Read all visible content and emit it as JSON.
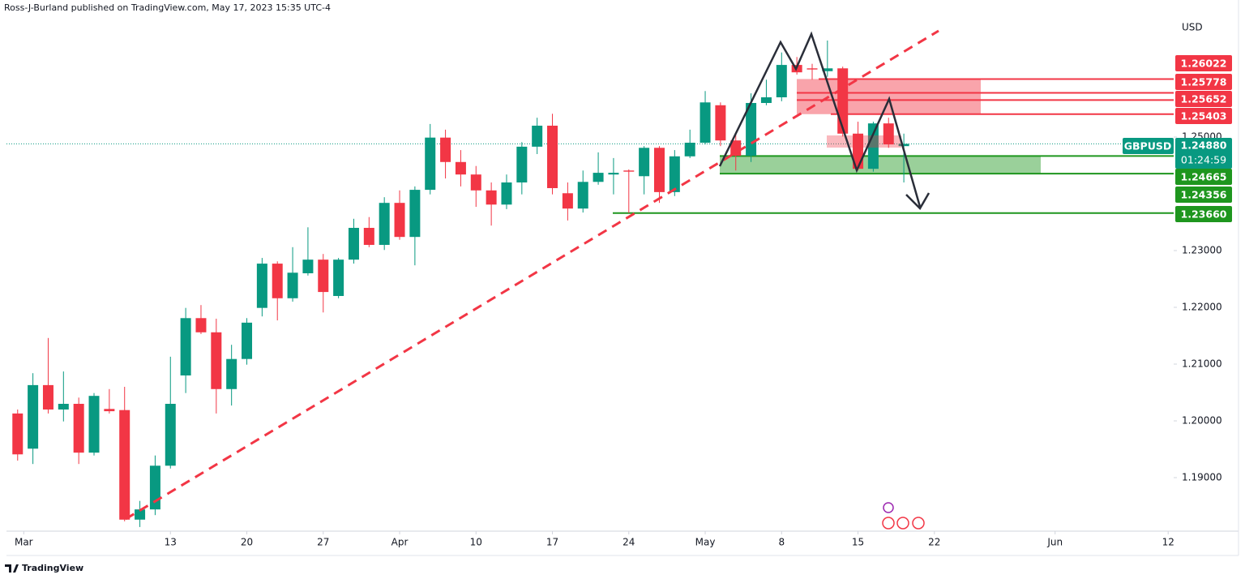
{
  "chart_data": {
    "type": "candlestick",
    "source": "Ross-J-Burland published on TradingView.com, May 17, 2023 15:35 UTC-4",
    "currency": "USD",
    "symbol": "GBPUSD",
    "countdown": "01:24:59",
    "brand": "TradingView",
    "up_color": "#089981",
    "down_color": "#f23645",
    "open": [
      1.2013,
      1.1951,
      1.2063,
      1.202,
      1.203,
      1.1944,
      1.2021,
      1.2019,
      1.1826,
      1.1844,
      1.1921,
      1.208,
      1.2181,
      1.2156,
      1.2056,
      1.2109,
      1.2199,
      1.2277,
      1.2216,
      1.226,
      1.2284,
      1.222,
      1.2284,
      1.234,
      1.231,
      1.2384,
      1.2324,
      1.2407,
      1.2499,
      1.2456,
      1.2434,
      1.2406,
      1.2381,
      1.242,
      1.2483,
      1.252,
      1.2401,
      1.2374,
      1.2421,
      1.2434,
      1.2441,
      1.2431,
      1.2481,
      1.2403,
      1.2466,
      1.249,
      1.2556,
      1.2494,
      1.2467,
      1.256,
      1.257,
      1.2627,
      1.2621,
      1.2616,
      1.2621,
      1.2506,
      1.2444,
      1.2524,
      1.2484
    ],
    "high": [
      1.202,
      1.2084,
      1.2146,
      1.2087,
      1.2041,
      1.2049,
      1.2056,
      1.206,
      1.1859,
      1.1939,
      1.2113,
      1.2199,
      1.2204,
      1.218,
      1.2134,
      1.2181,
      1.2287,
      1.2281,
      1.2306,
      1.2341,
      1.2294,
      1.2287,
      1.2356,
      1.2359,
      1.2394,
      1.2406,
      1.2413,
      1.2523,
      1.2513,
      1.2477,
      1.2449,
      1.242,
      1.2434,
      1.2491,
      1.2534,
      1.2541,
      1.242,
      1.2441,
      1.2473,
      1.2463,
      1.2443,
      1.2484,
      1.2484,
      1.2477,
      1.2513,
      1.2581,
      1.2561,
      1.2506,
      1.2577,
      1.2601,
      1.2649,
      1.2641,
      1.2629,
      1.267,
      1.2624,
      1.2527,
      1.2527,
      1.2534,
      1.2506
    ],
    "low": [
      1.193,
      1.1924,
      1.2013,
      1.1999,
      1.1924,
      1.1939,
      1.2013,
      1.1823,
      1.1813,
      1.1834,
      1.1916,
      1.2049,
      1.2153,
      1.2013,
      1.2027,
      1.2099,
      1.2184,
      1.2177,
      1.221,
      1.2256,
      1.2191,
      1.2216,
      1.2277,
      1.2306,
      1.2301,
      1.2319,
      1.2274,
      1.2399,
      1.2427,
      1.2413,
      1.2377,
      1.2344,
      1.2373,
      1.2399,
      1.247,
      1.2399,
      1.2353,
      1.2367,
      1.2416,
      1.2399,
      1.2366,
      1.2399,
      1.2384,
      1.2396,
      1.2463,
      1.2487,
      1.2484,
      1.2441,
      1.2456,
      1.2556,
      1.2563,
      1.261,
      1.2601,
      1.2606,
      1.2501,
      1.2441,
      1.2439,
      1.2481,
      1.242
    ],
    "close": [
      1.1941,
      1.2063,
      1.202,
      1.203,
      1.1944,
      1.2044,
      1.2017,
      1.1826,
      1.1844,
      1.1921,
      1.203,
      1.2181,
      1.2156,
      1.2056,
      1.2109,
      1.2173,
      1.2277,
      1.2216,
      1.2261,
      1.2284,
      1.2227,
      1.2284,
      1.234,
      1.231,
      1.2384,
      1.2324,
      1.2407,
      1.2499,
      1.2456,
      1.2434,
      1.2406,
      1.2381,
      1.242,
      1.2483,
      1.252,
      1.241,
      1.2374,
      1.2421,
      1.2437,
      1.2437,
      1.2439,
      1.2481,
      1.2403,
      1.2466,
      1.249,
      1.2561,
      1.2494,
      1.2467,
      1.256,
      1.257,
      1.2627,
      1.2614,
      1.2619,
      1.2621,
      1.2506,
      1.2444,
      1.2524,
      1.2487,
      1.2488
    ],
    "xlim": [
      0.27,
      76.66
    ],
    "xticks": [
      {
        "value": 1.4,
        "label": "Mar"
      },
      {
        "value": 11,
        "label": "13"
      },
      {
        "value": 16,
        "label": "20"
      },
      {
        "value": 21,
        "label": "27"
      },
      {
        "value": 26,
        "label": "Apr"
      },
      {
        "value": 31,
        "label": "10"
      },
      {
        "value": 36,
        "label": "17"
      },
      {
        "value": 41,
        "label": "24"
      },
      {
        "value": 46,
        "label": "May"
      },
      {
        "value": 51,
        "label": "8"
      },
      {
        "value": 56,
        "label": "15"
      },
      {
        "value": 61,
        "label": "22"
      },
      {
        "value": 68.9,
        "label": "Jun"
      },
      {
        "value": 76.3,
        "label": "12"
      }
    ],
    "ylim": [
      1.18057,
      1.27414
    ],
    "yticks": [
      {
        "value": 1.19,
        "label": "1.19000"
      },
      {
        "value": 1.2,
        "label": "1.20000"
      },
      {
        "value": 1.21,
        "label": "1.21000"
      },
      {
        "value": 1.22,
        "label": "1.22000"
      },
      {
        "value": 1.23,
        "label": "1.23000"
      },
      {
        "value": 1.25,
        "label": "1.25000"
      }
    ],
    "last_price": {
      "value": 1.2488,
      "label": "1.24880",
      "color": "#089981"
    },
    "levels": [
      {
        "value": 1.26022,
        "label": "1.26022",
        "color": "#f23645"
      },
      {
        "value": 1.25778,
        "label": "1.25778",
        "color": "#f23645"
      },
      {
        "value": 1.25652,
        "label": "1.25652",
        "color": "#f23645"
      },
      {
        "value": 1.25403,
        "label": "1.25403",
        "color": "#f23645"
      },
      {
        "value": 1.24665,
        "label": "1.24665",
        "color": "#1e961e"
      },
      {
        "value": 1.24356,
        "label": "1.24356",
        "color": "#1e961e"
      },
      {
        "value": 1.2366,
        "label": "1.23660",
        "color": "#1e961e"
      }
    ]
  }
}
